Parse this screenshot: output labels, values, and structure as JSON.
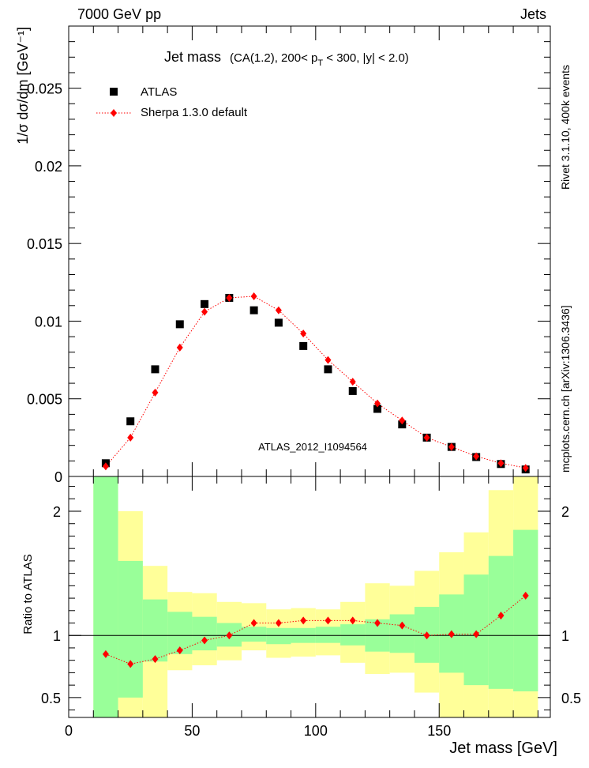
{
  "header": {
    "left": "7000 GeV pp",
    "right": "Jets",
    "side_top": "Rivet 3.1.10,  400k events",
    "side_bottom": "mcplots.cern.ch [arXiv:1306.3436]"
  },
  "chart_data": [
    {
      "type": "scatter",
      "title_main": "Jet mass",
      "title_sub": "(CA(1.2), 200< p",
      "title_sub_subscript": "T",
      "title_sub_rest": " < 300, |y| < 2.0)",
      "ylabel": "1/σ dσ/dm [GeV⁻¹]",
      "xlim": [
        0,
        195
      ],
      "ylim": [
        0,
        0.029
      ],
      "ytick_labels": [
        "0",
        "0.005",
        "0.01",
        "0.015",
        "0.02",
        "0.025"
      ],
      "ytick_values": [
        0,
        0.005,
        0.01,
        0.015,
        0.02,
        0.025
      ],
      "watermark": "ATLAS_2012_I1094564",
      "legend_placement": "top-left",
      "series": [
        {
          "name": "ATLAS",
          "color": "#000000",
          "marker": "square",
          "x": [
            15,
            25,
            35,
            45,
            55,
            65,
            75,
            85,
            95,
            105,
            115,
            125,
            135,
            145,
            155,
            165,
            175,
            185
          ],
          "values": [
            0.00085,
            0.00355,
            0.0069,
            0.0098,
            0.0111,
            0.0115,
            0.0107,
            0.0099,
            0.0084,
            0.0069,
            0.0055,
            0.00435,
            0.00335,
            0.0025,
            0.0019,
            0.00125,
            0.0008,
            0.00045
          ]
        },
        {
          "name": "Sherpa 1.3.0 default",
          "color": "#ff0000",
          "marker": "diamond",
          "line": "dotted",
          "x": [
            15,
            25,
            35,
            45,
            55,
            65,
            75,
            85,
            95,
            105,
            115,
            125,
            135,
            145,
            155,
            165,
            175,
            185
          ],
          "values": [
            0.00065,
            0.0025,
            0.0054,
            0.0083,
            0.0106,
            0.0115,
            0.0116,
            0.0107,
            0.0092,
            0.0075,
            0.0061,
            0.0047,
            0.0036,
            0.0025,
            0.0019,
            0.0013,
            0.00085,
            0.00055
          ]
        }
      ]
    },
    {
      "type": "line",
      "ylabel": "Ratio to ATLAS",
      "xlabel": "Jet mass [GeV]",
      "xlim": [
        0,
        195
      ],
      "ylim": [
        0.34,
        2.28
      ],
      "xtick_labels": [
        "0",
        "50",
        "100",
        "150"
      ],
      "xtick_values": [
        0,
        50,
        100,
        150
      ],
      "ytick_labels": [
        "0.5",
        "1",
        "2"
      ],
      "ytick_values": [
        0.5,
        1,
        2
      ],
      "reference_line": 1,
      "bins": [
        10,
        20,
        30,
        40,
        50,
        60,
        70,
        80,
        90,
        100,
        110,
        120,
        130,
        140,
        150,
        160,
        170,
        180,
        190
      ],
      "band_stat": {
        "name": "stat",
        "color": "#99ff99",
        "low": [
          0.34,
          0.5,
          0.79,
          0.85,
          0.88,
          0.91,
          0.95,
          0.93,
          0.94,
          0.94,
          0.92,
          0.87,
          0.86,
          0.78,
          0.7,
          0.6,
          0.57,
          0.55
        ],
        "high": [
          2.28,
          1.6,
          1.29,
          1.19,
          1.15,
          1.1,
          1.07,
          1.06,
          1.06,
          1.07,
          1.09,
          1.13,
          1.17,
          1.23,
          1.33,
          1.49,
          1.64,
          1.85
        ]
      },
      "band_total": {
        "name": "total",
        "color": "#ffff99",
        "low": [
          0.34,
          0.34,
          0.34,
          0.72,
          0.76,
          0.8,
          0.88,
          0.82,
          0.83,
          0.84,
          0.78,
          0.69,
          0.7,
          0.54,
          0.34,
          0.34,
          0.34,
          0.34
        ],
        "high": [
          2.28,
          2.0,
          1.56,
          1.35,
          1.34,
          1.27,
          1.26,
          1.21,
          1.22,
          1.21,
          1.27,
          1.42,
          1.4,
          1.52,
          1.67,
          1.83,
          2.17,
          2.28
        ]
      },
      "series": [
        {
          "name": "Sherpa 1.3.0 default",
          "color": "#ff0000",
          "x": [
            15,
            25,
            35,
            45,
            55,
            65,
            75,
            85,
            95,
            105,
            115,
            125,
            135,
            145,
            155,
            165,
            175,
            185
          ],
          "values": [
            0.85,
            0.77,
            0.81,
            0.88,
            0.96,
            1.0,
            1.1,
            1.1,
            1.12,
            1.12,
            1.12,
            1.1,
            1.08,
            1.0,
            1.01,
            1.01,
            1.16,
            1.32
          ]
        }
      ]
    }
  ]
}
